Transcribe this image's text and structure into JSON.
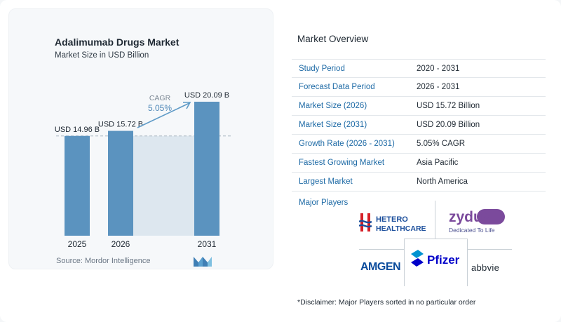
{
  "chart_data": {
    "type": "bar",
    "title": "Adalimumab Drugs Market",
    "subtitle": "Market Size in USD Billion",
    "categories": [
      "2025",
      "2026",
      "2031"
    ],
    "values": [
      14.96,
      15.72,
      20.09
    ],
    "data_labels": [
      "USD 14.96 B",
      "USD 15.72 B",
      "USD 20.09 B"
    ],
    "cagr_label": "CAGR",
    "cagr_value": "5.05%",
    "ylim": [
      0,
      20.09
    ],
    "grid": false,
    "colors": {
      "bar": "#5b93bf",
      "highlight": "#dde7ef",
      "dashed": "#b9c4cd",
      "arrow": "#5f9bc7"
    }
  },
  "source": "Source:  Mordor Intelligence",
  "overview": {
    "title": "Market Overview",
    "rows": [
      {
        "label": "Study Period",
        "value": "2020 - 2031"
      },
      {
        "label": "Forecast Data Period",
        "value": "2026 - 2031"
      },
      {
        "label": "Market Size (2026)",
        "value": "USD 15.72 Billion"
      },
      {
        "label": "Market Size (2031)",
        "value": "USD 20.09 Billion"
      },
      {
        "label": "Growth Rate (2026 - 2031)",
        "value": "5.05% CAGR"
      },
      {
        "label": "Fastest Growing Market",
        "value": "Asia Pacific"
      },
      {
        "label": "Largest Market",
        "value": "North America"
      }
    ]
  },
  "players": {
    "title": "Major Players",
    "hetero_line1": "HETERO",
    "hetero_line2": "HEALTHCARE",
    "zydus_name": "zydus",
    "zydus_tagline": "Dedicated To Life",
    "amgen": "AMGEN",
    "pfizer": "Pfizer",
    "abbvie": "abbvie"
  },
  "disclaimer": "*Disclaimer: Major Players sorted in no particular order"
}
